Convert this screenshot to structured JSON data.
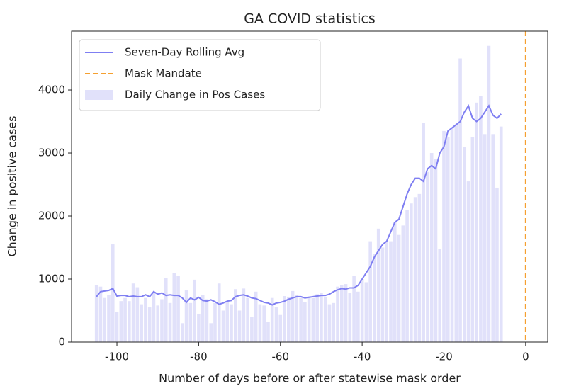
{
  "chart_data": {
    "type": "bar",
    "title": "GA COVID statistics",
    "x_label": "Number of days before or after statewise mask order",
    "y_label": "Change in positive cases",
    "x": [
      -105,
      -104,
      -103,
      -102,
      -101,
      -100,
      -99,
      -98,
      -97,
      -96,
      -95,
      -94,
      -93,
      -92,
      -91,
      -90,
      -89,
      -88,
      -87,
      -86,
      -85,
      -84,
      -83,
      -82,
      -81,
      -80,
      -79,
      -78,
      -77,
      -76,
      -75,
      -74,
      -73,
      -72,
      -71,
      -70,
      -69,
      -68,
      -67,
      -66,
      -65,
      -64,
      -63,
      -62,
      -61,
      -60,
      -59,
      -58,
      -57,
      -56,
      -55,
      -54,
      -53,
      -52,
      -51,
      -50,
      -49,
      -48,
      -47,
      -46,
      -45,
      -44,
      -43,
      -42,
      -41,
      -40,
      -39,
      -38,
      -37,
      -36,
      -35,
      -34,
      -33,
      -32,
      -31,
      -30,
      -29,
      -28,
      -27,
      -26,
      -25,
      -24,
      -23,
      -22,
      -21,
      -20,
      -19,
      -18,
      -17,
      -16,
      -15,
      -14,
      -13,
      -12,
      -11,
      -10,
      -9,
      -8,
      -7,
      -6
    ],
    "series": [
      {
        "name": "Seven-Day Rolling Avg",
        "type": "line",
        "color": "#7f7ff2",
        "values": [
          720,
          800,
          810,
          820,
          850,
          730,
          740,
          740,
          720,
          730,
          720,
          720,
          750,
          720,
          800,
          760,
          780,
          740,
          750,
          740,
          740,
          700,
          630,
          700,
          670,
          710,
          660,
          650,
          670,
          640,
          600,
          620,
          650,
          660,
          720,
          740,
          750,
          730,
          700,
          690,
          660,
          630,
          620,
          590,
          620,
          630,
          650,
          680,
          700,
          720,
          720,
          700,
          710,
          720,
          730,
          740,
          740,
          760,
          800,
          830,
          850,
          840,
          860,
          860,
          900,
          1000,
          1100,
          1200,
          1350,
          1450,
          1550,
          1600,
          1750,
          1900,
          1950,
          2150,
          2350,
          2500,
          2600,
          2600,
          2550,
          2750,
          2800,
          2750,
          3000,
          3100,
          3350,
          3400,
          3450,
          3500,
          3650,
          3750,
          3550,
          3500,
          3550,
          3650,
          3750,
          3600,
          3550,
          3620
        ]
      },
      {
        "name": "Mask Mandate",
        "type": "vline",
        "color": "#f5a030",
        "x": 0
      },
      {
        "name": "Daily Change in Pos Cases",
        "type": "bar",
        "color": "#e1e1fa",
        "values": [
          900,
          880,
          700,
          750,
          1550,
          480,
          650,
          700,
          650,
          930,
          870,
          600,
          700,
          550,
          800,
          580,
          680,
          1020,
          620,
          1100,
          1050,
          300,
          820,
          620,
          990,
          450,
          750,
          680,
          300,
          620,
          930,
          500,
          640,
          600,
          840,
          500,
          850,
          700,
          400,
          800,
          600,
          580,
          320,
          700,
          550,
          430,
          730,
          720,
          810,
          750,
          700,
          640,
          730,
          700,
          760,
          780,
          720,
          600,
          620,
          880,
          900,
          920,
          780,
          1050,
          800,
          1000,
          950,
          1600,
          1400,
          1800,
          1500,
          1600,
          1600,
          1900,
          1700,
          1850,
          2100,
          2200,
          2300,
          2350,
          3480,
          2700,
          3000,
          2900,
          1480,
          3350,
          3250,
          3400,
          3450,
          4500,
          3100,
          2550,
          3250,
          3800,
          3900,
          3300,
          4700,
          3300,
          2450,
          3420
        ]
      }
    ],
    "xlim": [
      -111.1,
      5.4
    ],
    "xticks": [
      -100,
      -80,
      -60,
      -40,
      -20,
      0
    ],
    "ylim": [
      0,
      4933
    ],
    "yticks": [
      0,
      1000,
      2000,
      3000,
      4000
    ],
    "legend": "upper left"
  }
}
